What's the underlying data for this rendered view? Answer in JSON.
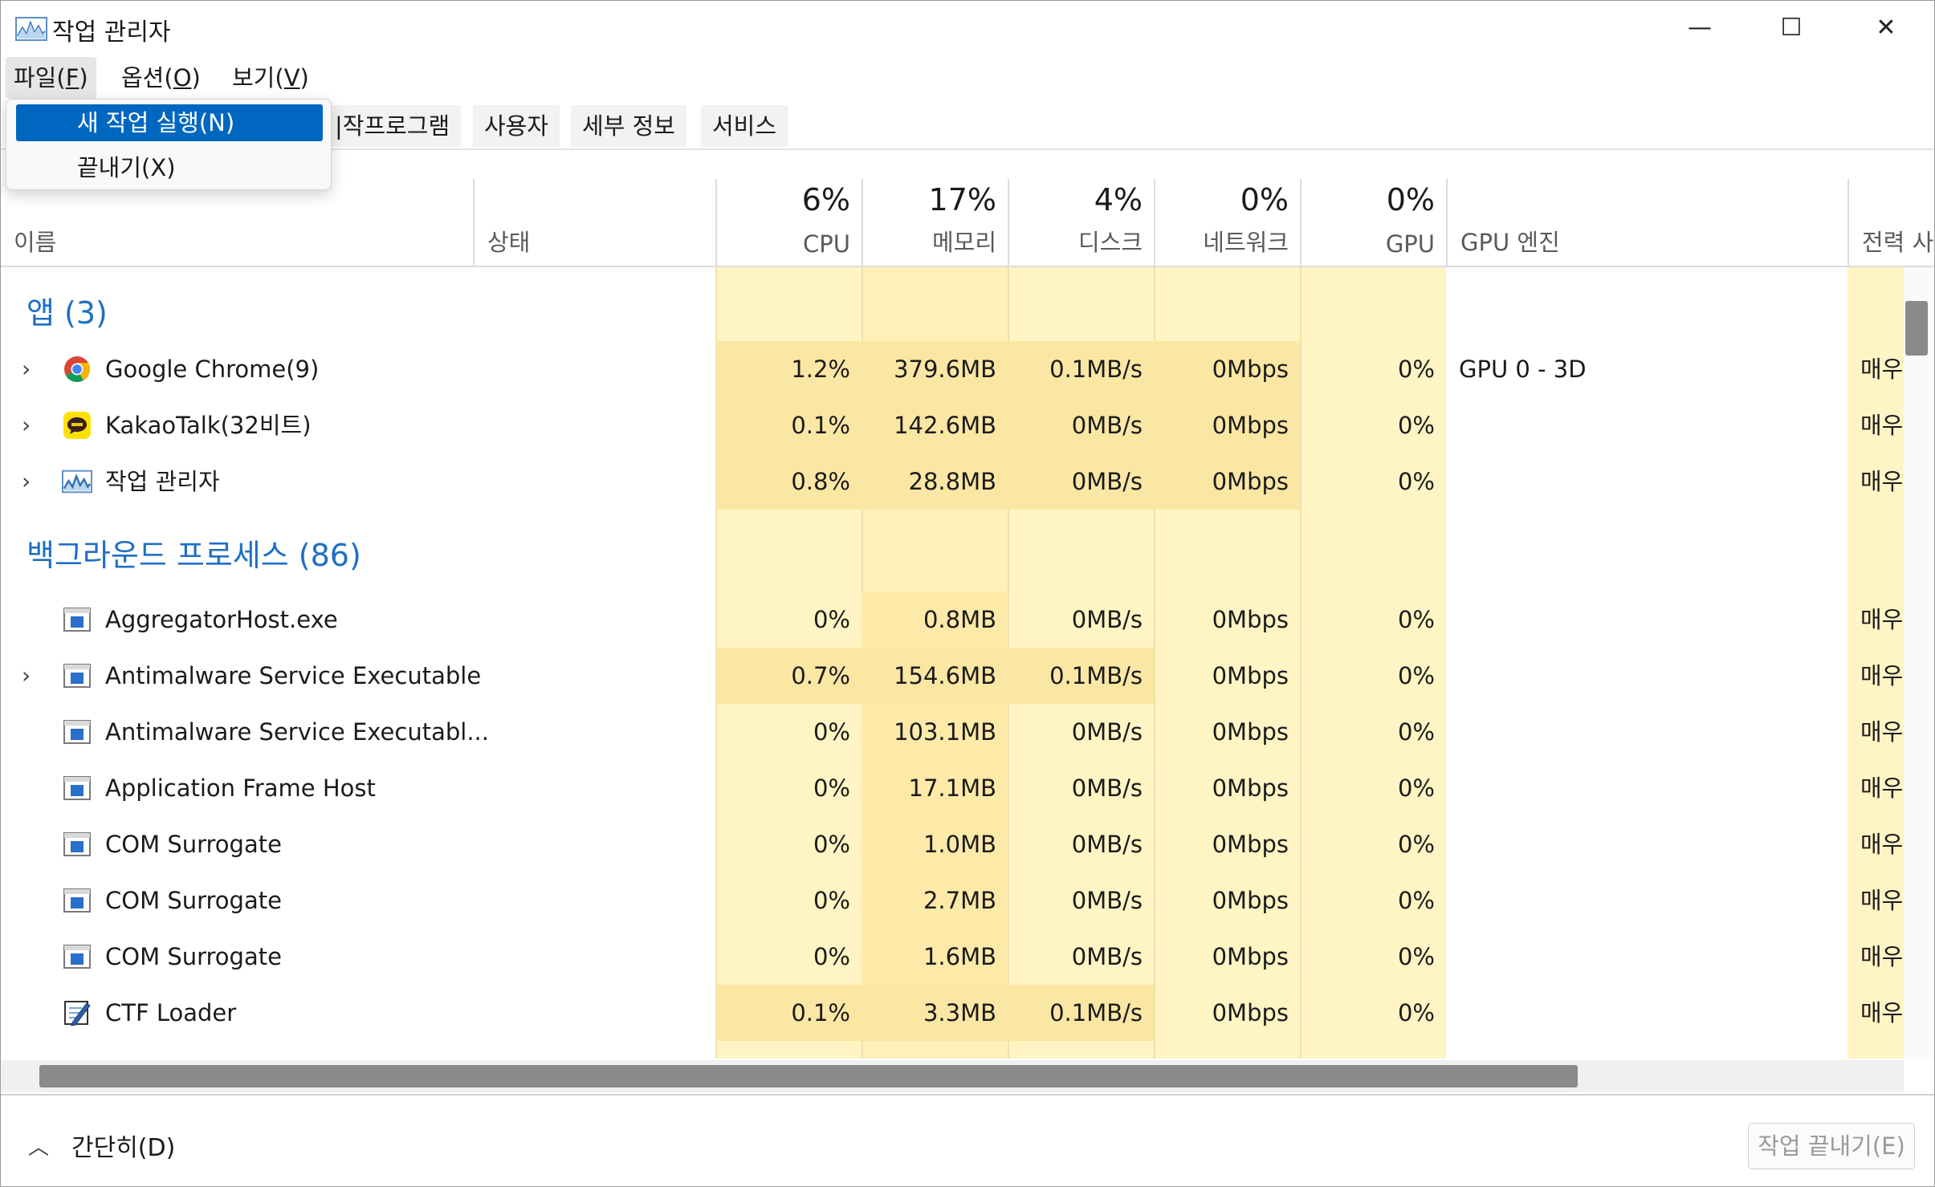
{
  "window": {
    "title": "작업 관리자",
    "min": "—",
    "max": "☐",
    "close": "✕"
  },
  "menubar": {
    "file": {
      "text": "파일(",
      "key": "F",
      "end": ")"
    },
    "options": {
      "text": "옵션(",
      "key": "O",
      "end": ")"
    },
    "view": {
      "text": "보기(",
      "key": "V",
      "end": ")"
    }
  },
  "dropdown": {
    "items": [
      "새 작업 실행(N)",
      "끝내기(X)"
    ]
  },
  "tabs": [
    "|작프로그램",
    "사용자",
    "세부 정보",
    "서비스"
  ],
  "columns": {
    "name": "이름",
    "status": "상태",
    "cpu": {
      "pct": "6%",
      "label": "CPU"
    },
    "memory": {
      "pct": "17%",
      "label": "메모리"
    },
    "disk": {
      "pct": "4%",
      "label": "디스크"
    },
    "network": {
      "pct": "0%",
      "label": "네트워크"
    },
    "gpu": {
      "pct": "0%",
      "label": "GPU"
    },
    "gpu_engine": "GPU 엔진",
    "power": "전력 사"
  },
  "groups": {
    "apps": "앱 (3)",
    "background": "백그라운드 프로세스 (86)"
  },
  "apps": [
    {
      "name": "Google Chrome(9)",
      "cpu": "1.2%",
      "mem": "379.6MB",
      "disk": "0.1MB/s",
      "net": "0Mbps",
      "gpu": "0%",
      "engine": "GPU 0 - 3D",
      "power": "매우",
      "icon": "chrome-icon"
    },
    {
      "name": "KakaoTalk(32비트)",
      "cpu": "0.1%",
      "mem": "142.6MB",
      "disk": "0MB/s",
      "net": "0Mbps",
      "gpu": "0%",
      "engine": "",
      "power": "매우",
      "icon": "kakaotalk-icon"
    },
    {
      "name": "작업 관리자",
      "cpu": "0.8%",
      "mem": "28.8MB",
      "disk": "0MB/s",
      "net": "0Mbps",
      "gpu": "0%",
      "engine": "",
      "power": "매우",
      "icon": "task-manager-icon"
    }
  ],
  "background": [
    {
      "name": "AggregatorHost.exe",
      "cpu": "0%",
      "mem": "0.8MB",
      "disk": "0MB/s",
      "net": "0Mbps",
      "gpu": "0%",
      "power": "매우",
      "chev": ""
    },
    {
      "name": "Antimalware Service Executable",
      "cpu": "0.7%",
      "mem": "154.6MB",
      "disk": "0.1MB/s",
      "net": "0Mbps",
      "gpu": "0%",
      "power": "매우",
      "chev": "›"
    },
    {
      "name": "Antimalware Service Executabl...",
      "cpu": "0%",
      "mem": "103.1MB",
      "disk": "0MB/s",
      "net": "0Mbps",
      "gpu": "0%",
      "power": "매우",
      "chev": ""
    },
    {
      "name": "Application Frame Host",
      "cpu": "0%",
      "mem": "17.1MB",
      "disk": "0MB/s",
      "net": "0Mbps",
      "gpu": "0%",
      "power": "매우",
      "chev": ""
    },
    {
      "name": "COM Surrogate",
      "cpu": "0%",
      "mem": "1.0MB",
      "disk": "0MB/s",
      "net": "0Mbps",
      "gpu": "0%",
      "power": "매우",
      "chev": ""
    },
    {
      "name": "COM Surrogate",
      "cpu": "0%",
      "mem": "2.7MB",
      "disk": "0MB/s",
      "net": "0Mbps",
      "gpu": "0%",
      "power": "매우",
      "chev": ""
    },
    {
      "name": "COM Surrogate",
      "cpu": "0%",
      "mem": "1.6MB",
      "disk": "0MB/s",
      "net": "0Mbps",
      "gpu": "0%",
      "power": "매우",
      "chev": ""
    },
    {
      "name": "CTF Loader",
      "cpu": "0.1%",
      "mem": "3.3MB",
      "disk": "0.1MB/s",
      "net": "0Mbps",
      "gpu": "0%",
      "power": "매우",
      "chev": "",
      "icon": "ctf-loader-icon"
    }
  ],
  "footer": {
    "fewer_details": "간단히(D)",
    "end_task": "작업 끝내기(E)"
  }
}
